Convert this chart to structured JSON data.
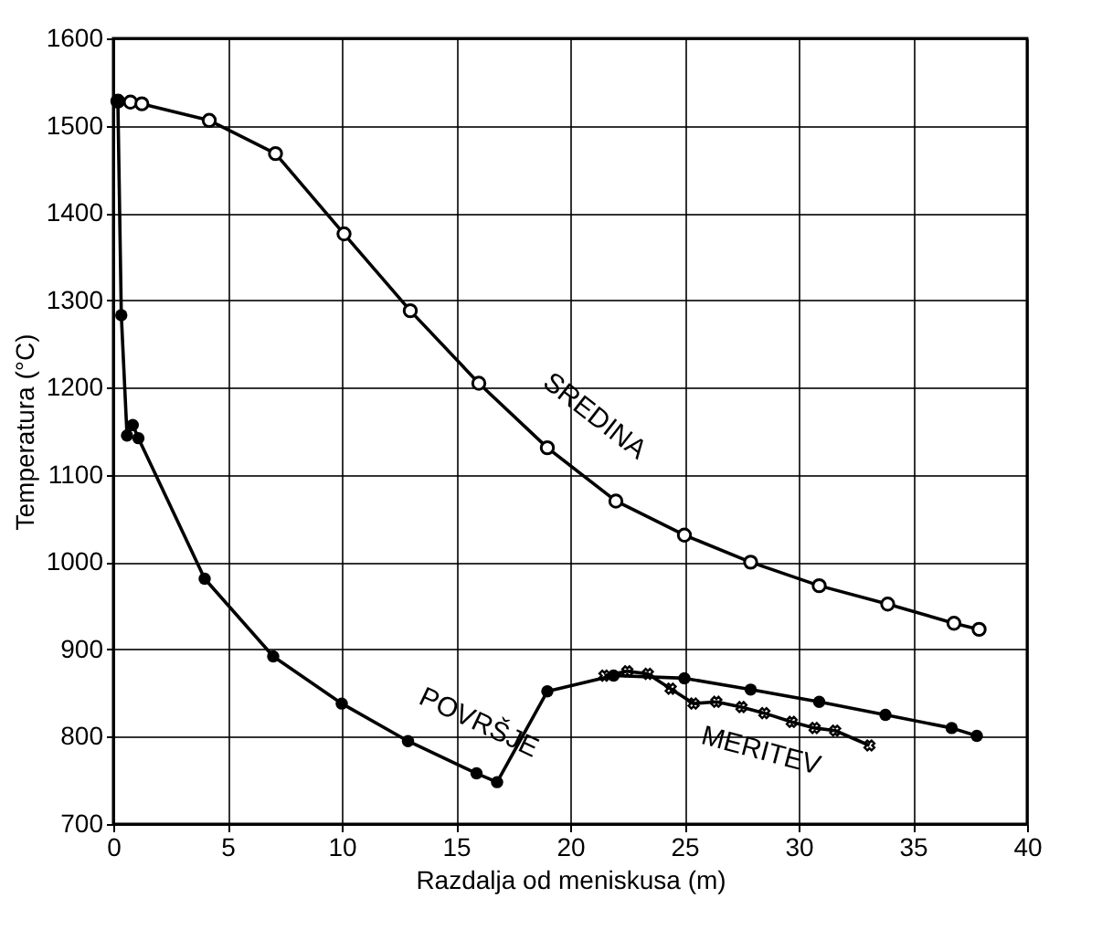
{
  "chart_data": {
    "type": "line",
    "xlabel": "Razdalja od meniskusa (m)",
    "ylabel": "Temperatura (°C)",
    "xlim": [
      0,
      40
    ],
    "xticks": [
      0,
      5,
      10,
      15,
      20,
      25,
      30,
      35,
      40
    ],
    "ylim": [
      700,
      1600
    ],
    "yticks": [
      700,
      800,
      900,
      1000,
      1100,
      1200,
      1300,
      1400,
      1500,
      1600
    ],
    "grid": true,
    "legend": false,
    "line_style": "solid",
    "series": [
      {
        "name": "SREDINA",
        "color": "#000000",
        "marker": "circle_open",
        "x": [
          0.2,
          0.75,
          1.25,
          4.2,
          7.1,
          10.1,
          13.0,
          16.0,
          19.0,
          22.0,
          25.0,
          27.9,
          30.9,
          33.9,
          36.8,
          37.9
        ],
        "values": [
          1528,
          1527,
          1525,
          1506,
          1468,
          1376,
          1288,
          1205,
          1131,
          1070,
          1031,
          1000,
          973,
          952,
          930,
          923
        ]
      },
      {
        "name": "POVRŠJE",
        "color": "#000000",
        "marker": "circle",
        "x": [
          0.2,
          0.35,
          0.6,
          0.85,
          1.1,
          4.0,
          7.0,
          10.0,
          12.9,
          15.9,
          16.8,
          19.0,
          21.9,
          25.0,
          27.9,
          30.9,
          33.8,
          36.7,
          37.8
        ],
        "values": [
          1528,
          1283,
          1145,
          1157,
          1142,
          981,
          892,
          838,
          795,
          758,
          748,
          852,
          870,
          867,
          854,
          840,
          825,
          810,
          801
        ]
      },
      {
        "name": "MERITEV",
        "color": "#000000",
        "marker": "cross",
        "x": [
          21.5,
          22.5,
          23.4,
          24.4,
          25.4,
          26.4,
          27.5,
          28.5,
          29.7,
          30.7,
          31.6,
          33.1
        ],
        "values": [
          870,
          875,
          872,
          855,
          838,
          840,
          834,
          827,
          817,
          810,
          807,
          790
        ]
      }
    ]
  }
}
